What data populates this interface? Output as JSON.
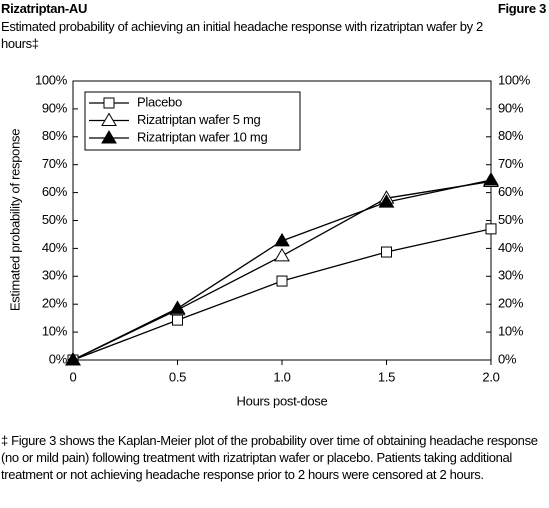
{
  "header": {
    "left": "Rizatriptan-AU",
    "right": "Figure 3"
  },
  "chart_data": {
    "type": "line",
    "title": "Estimated probability of achieving an initial headache response with rizatriptan wafer by 2 hours‡",
    "x_label": "Hours post-dose",
    "y_label": "Estimated probability of response",
    "x": [
      0,
      0.5,
      1,
      1.5,
      2
    ],
    "xlim": [
      0,
      2
    ],
    "xticks": [
      0,
      0.5,
      {
        "value": 1,
        "label": "1.0"
      },
      1.5,
      {
        "value": 2,
        "label": "2.0"
      }
    ],
    "ylim": [
      0,
      100
    ],
    "yticks": [
      {
        "value": 0,
        "label": "0%"
      },
      {
        "value": 10,
        "label": "10%"
      },
      {
        "value": 20,
        "label": "20%"
      },
      {
        "value": 30,
        "label": "30%"
      },
      {
        "value": 40,
        "label": "40%"
      },
      {
        "value": 50,
        "label": "50%"
      },
      {
        "value": 60,
        "label": "60%"
      },
      {
        "value": 70,
        "label": "70%"
      },
      {
        "value": 80,
        "label": "80%"
      },
      {
        "value": 90,
        "label": "90%"
      },
      {
        "value": 100,
        "label": "100%"
      }
    ],
    "y2lim": [
      0,
      100
    ],
    "y2ticks": [
      {
        "value": 0,
        "label": "0%"
      },
      {
        "value": 10,
        "label": "10%"
      },
      {
        "value": 20,
        "label": "20%"
      },
      {
        "value": 30,
        "label": "30%"
      },
      {
        "value": 40,
        "label": "40%"
      },
      {
        "value": 50,
        "label": "50%"
      },
      {
        "value": 60,
        "label": "60%"
      },
      {
        "value": 70,
        "label": "70%"
      },
      {
        "value": 80,
        "label": "80%"
      },
      {
        "value": 90,
        "label": "90%"
      },
      {
        "value": 100,
        "label": "100%"
      }
    ],
    "legend": "upper-left",
    "series": [
      {
        "name": "Placebo",
        "color": "#000000",
        "marker": "square-open",
        "values": [
          0,
          14.3,
          28.3,
          38.7,
          47
        ]
      },
      {
        "name": "Rizatriptan wafer 5 mg",
        "color": "#000000",
        "marker": "triangle-open",
        "values": [
          0,
          18,
          37.3,
          58,
          64
        ]
      },
      {
        "name": "Rizatriptan wafer 10 mg",
        "color": "#000000",
        "marker": "triangle-filled",
        "values": [
          0,
          18.5,
          42.7,
          56.6,
          64.5
        ]
      }
    ]
  },
  "footnote": "‡ Figure 3 shows the Kaplan-Meier plot of the probability over time of obtaining headache response (no or mild pain) following treatment with rizatriptan wafer or placebo. Patients taking additional treatment or not achieving headache response prior to 2 hours were censored at 2 hours."
}
